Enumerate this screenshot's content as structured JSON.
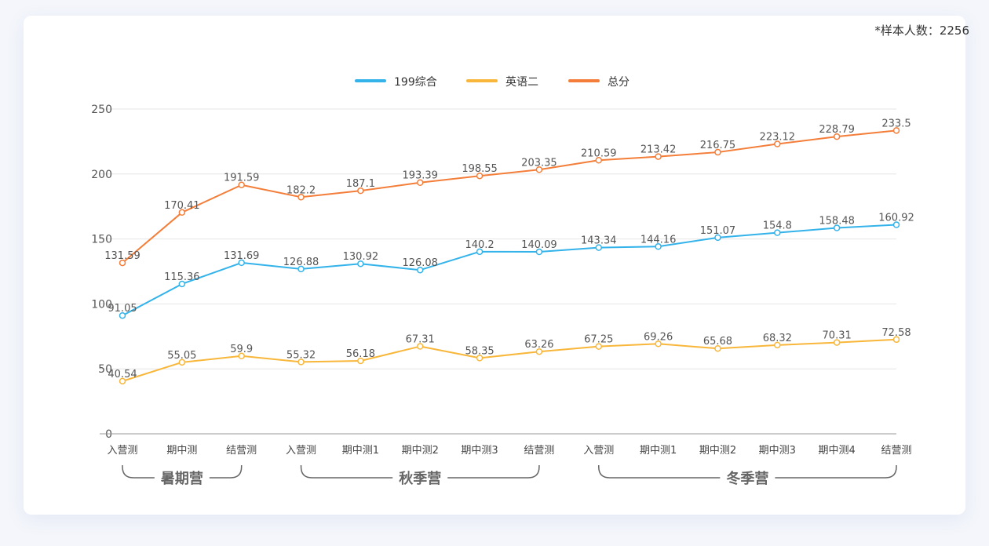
{
  "sample_note": "*样本人数：2256",
  "colors": {
    "blue": "#33b3ea",
    "yellow": "#f8b73a",
    "orange": "#f47e39",
    "grid": "#e6e6e6",
    "axis": "#999999",
    "bracket": "#666666"
  },
  "chart_data": {
    "type": "line",
    "title": "",
    "xlabel": "",
    "ylabel": "",
    "ylim": [
      0,
      250
    ],
    "yticks": [
      0,
      50,
      100,
      150,
      200,
      250
    ],
    "grid": true,
    "legend_position": "top-center",
    "categories": [
      "入营测",
      "期中测",
      "结营测",
      "入营测",
      "期中测1",
      "期中测2",
      "期中测3",
      "结营测",
      "入营测",
      "期中测1",
      "期中测2",
      "期中测3",
      "期中测4",
      "结营测"
    ],
    "groups": [
      {
        "label": "暑期营",
        "from": 0,
        "to": 2
      },
      {
        "label": "秋季营",
        "from": 3,
        "to": 7
      },
      {
        "label": "冬季营",
        "from": 8,
        "to": 13
      }
    ],
    "series": [
      {
        "name": "199综合",
        "color": "#33b3ea",
        "values": [
          91.05,
          115.36,
          131.69,
          126.88,
          130.92,
          126.08,
          140.2,
          140.09,
          143.34,
          144.16,
          151.07,
          154.8,
          158.48,
          160.92
        ]
      },
      {
        "name": "英语二",
        "color": "#f8b73a",
        "values": [
          40.54,
          55.05,
          59.9,
          55.32,
          56.18,
          67.31,
          58.35,
          63.26,
          67.25,
          69.26,
          65.68,
          68.32,
          70.31,
          72.58
        ]
      },
      {
        "name": "总分",
        "color": "#f47e39",
        "values": [
          131.59,
          170.41,
          191.59,
          182.2,
          187.1,
          193.39,
          198.55,
          203.35,
          210.59,
          213.42,
          216.75,
          223.12,
          228.79,
          233.5
        ]
      }
    ]
  }
}
